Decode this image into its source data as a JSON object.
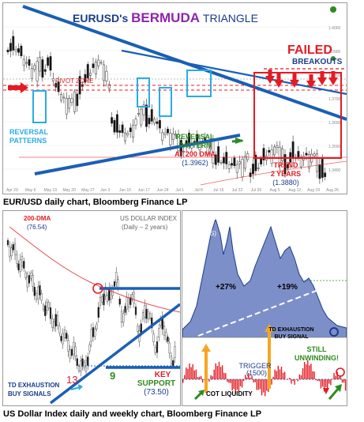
{
  "chart_data": [
    {
      "type": "candlestick",
      "title_prefix": "EURUSD's",
      "title_highlight": "BERMUDA",
      "title_suffix": "TRIANGLE",
      "x_ticks": [
        "Apr 29",
        "May 6",
        "May 13",
        "May 20",
        "May 27",
        "Jun 3",
        "Jun 10",
        "Jun 17",
        "Jun 24",
        "Jul 1",
        "Jul 8",
        "Jul 15",
        "Jul 22",
        "Jul 29",
        "Aug 5",
        "Aug 12",
        "Aug 19",
        "Aug 26"
      ],
      "y_ticks": [
        "1.4000",
        "1.3900",
        "1.3800",
        "1.3700",
        "1.3600",
        "1.3500",
        "1.3400"
      ],
      "annotations": {
        "pivot_zone": "PIVOT ZONE",
        "failed": "FAILED",
        "breakouts": "BREAKOUTS",
        "reversal_patterns": [
          "REVERSAL",
          "PATTERNS"
        ],
        "reversal_pattern_200": [
          "REVERSAL",
          "PATTERN",
          "AT 200 DMA",
          "(1.3962)"
        ],
        "trend_2y": [
          "TREND",
          "2 YEARS",
          "(1.3880)"
        ]
      },
      "series": [
        {
          "name": "EUR/USD",
          "close": [
            1.398,
            1.3965,
            1.389,
            1.382,
            1.385,
            1.3905,
            1.376,
            1.3695,
            1.3665,
            1.38,
            1.383,
            1.388,
            1.382,
            1.361,
            1.358,
            1.355,
            1.361,
            1.364,
            1.365,
            1.356,
            1.353,
            1.3495,
            1.3535,
            1.352,
            1.35,
            1.3465,
            1.347,
            1.343,
            1.3395,
            1.3405,
            1.3415,
            1.343,
            1.346,
            1.347,
            1.342,
            1.3475,
            1.345,
            1.3435,
            1.341,
            1.3395
          ]
        }
      ]
    },
    {
      "type": "candlestick",
      "title": "US DOLLAR INDEX",
      "subtitle": "(Daily – 2 years)",
      "ma_label": "200-DMA",
      "ma_value": "(76.54)",
      "annotations": {
        "td_exhaustion": [
          "TD EXHAUSTION",
          "BUY SIGNALS"
        ],
        "count_13": "13",
        "count_9": "9",
        "key_support": [
          "KEY",
          "SUPPORT",
          "(73.50)"
        ]
      }
    },
    {
      "type": "area",
      "title": "US$ INDEX",
      "subtitle": [
        "(Weekly)",
        "(4 YEARS)"
      ],
      "annotations": {
        "gain_1": "+27%",
        "gain_2": "+19%",
        "td_exhaustion": [
          "TD EXHAUSTION",
          "BUY SIGNAL"
        ],
        "still_unwinding": [
          "STILL",
          "UNWINDING!"
        ],
        "trigger": [
          "TRIGGER",
          "(1500)"
        ],
        "cot_liquidity": "COT LIQUIDITY"
      }
    }
  ],
  "captions": {
    "top": "EUR/USD daily chart, Bloomberg Finance LP",
    "bottom": "US Dollar Index daily and weekly chart, Bloomberg Finance LP"
  },
  "colors": {
    "title_blue": "#1a3c8c",
    "title_purple": "#8e24aa",
    "red": "#e31b23",
    "cyan": "#29abe2",
    "green": "#2e8b1e",
    "trend_blue": "#1a5fb4",
    "area_fill": "#7d8fc8",
    "orange": "#f5a623"
  }
}
